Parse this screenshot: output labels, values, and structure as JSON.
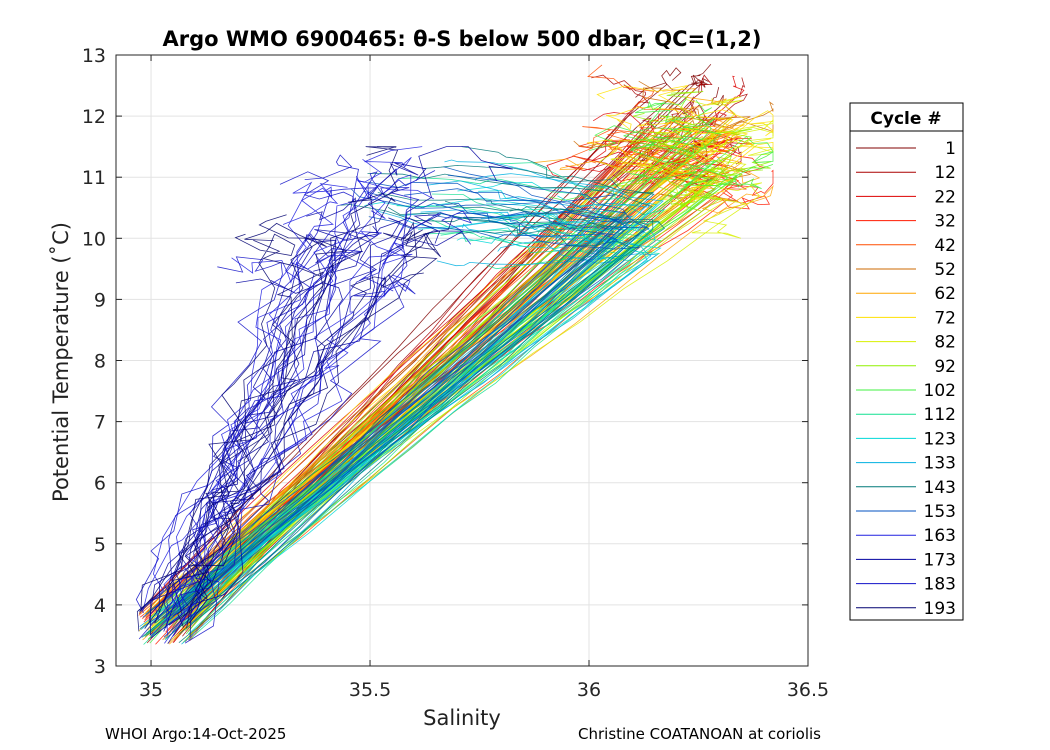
{
  "chart_data": {
    "type": "line",
    "title": "Argo WMO 6900465: θ-S below 500 dbar,  QC=(1,2)",
    "xlabel": "Salinity",
    "ylabel": "Potential Temperature (˚C)",
    "xlim": [
      34.92,
      36.5
    ],
    "ylim": [
      3,
      13
    ],
    "xticks": [
      "35",
      "35.5",
      "36",
      "36.5"
    ],
    "yticks": [
      "3",
      "4",
      "5",
      "6",
      "7",
      "8",
      "9",
      "10",
      "11",
      "12",
      "13"
    ],
    "grid": true,
    "legend": {
      "title": "Cycle #",
      "placement": "right-outside",
      "entries": [
        "1",
        "12",
        "22",
        "32",
        "42",
        "52",
        "62",
        "72",
        "82",
        "92",
        "102",
        "112",
        "123",
        "133",
        "143",
        "153",
        "163",
        "173",
        "183",
        "193"
      ],
      "colors": [
        "#800000",
        "#aa0000",
        "#dd0000",
        "#ff1a00",
        "#ff4d00",
        "#cc6a00",
        "#ffa500",
        "#ffe000",
        "#d8f000",
        "#90f000",
        "#40f040",
        "#10e090",
        "#00d8d8",
        "#00b0e0",
        "#007878",
        "#0050c0",
        "#2020e0",
        "#0000a0",
        "#1010c8",
        "#000070"
      ]
    },
    "series_shape": {
      "cold_end": [
        35.0,
        3.5
      ],
      "warm_paths": "curves rise from cold end toward warm saline core near S 36.1-36.4, θ 11-12.9; late cycles deviate into fresher warm water near S 35.2-35.6"
    }
  },
  "footer": {
    "left": "WHOI Argo:14-Oct-2025",
    "right": "Christine COATANOAN at coriolis"
  }
}
